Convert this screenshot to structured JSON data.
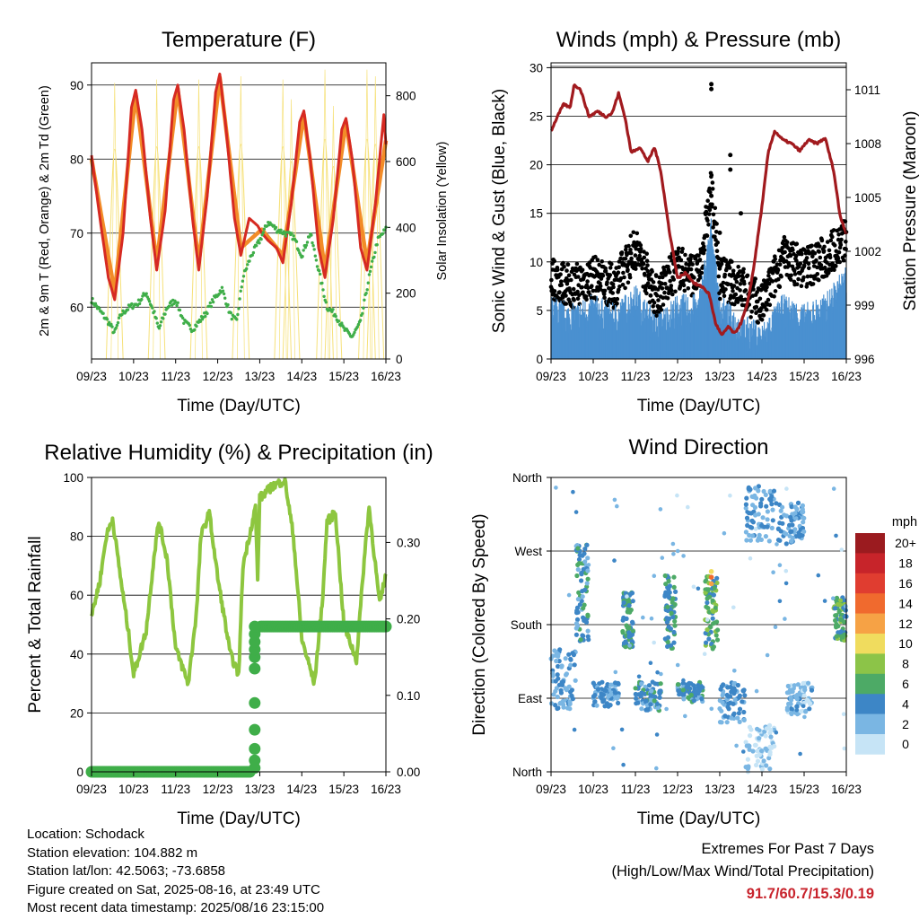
{
  "chart_data": [
    {
      "type": "line",
      "title": "Temperature (F)",
      "xlabel": "Time (Day/UTC)",
      "ylabel": "2m & 9m T (Red, Orange) & 2m Td (Green)",
      "y2label": "Solar Insolation (Yellow)",
      "x_ticks": [
        "09/23",
        "10/23",
        "11/23",
        "12/23",
        "13/23",
        "14/23",
        "15/23",
        "16/23"
      ],
      "ylim": [
        53,
        93
      ],
      "y_ticks": [
        60,
        70,
        80,
        90
      ],
      "y2lim": [
        0,
        900
      ],
      "y2_ticks": [
        0,
        200,
        400,
        600,
        800
      ],
      "series": [
        {
          "name": "2m T",
          "color": "#d62a22",
          "x": [
            0,
            0.2,
            0.4,
            0.55,
            0.75,
            0.95,
            1.05,
            1.2,
            1.4,
            1.55,
            1.75,
            1.95,
            2.05,
            2.2,
            2.4,
            2.55,
            2.75,
            2.95,
            3.05,
            3.2,
            3.4,
            3.55,
            3.75,
            3.95,
            4.05,
            4.2,
            4.4,
            4.55,
            4.75,
            4.95,
            5.05,
            5.2,
            5.4,
            5.55,
            5.75,
            5.95,
            6.05,
            6.2,
            6.4,
            6.55,
            6.75,
            6.95,
            7.0
          ],
          "y": [
            80.5,
            72,
            64,
            61,
            70,
            87,
            89.3,
            84,
            72,
            65,
            73,
            88,
            90,
            84,
            72,
            65,
            75,
            89,
            91.5,
            84,
            72,
            67,
            72,
            71,
            70,
            69,
            68,
            66,
            74,
            85,
            86.5,
            80,
            68,
            64,
            72,
            84,
            85.5,
            80,
            68,
            65,
            74,
            86,
            82
          ]
        },
        {
          "name": "9m T",
          "color": "#f28c28",
          "x": [
            0,
            0.55,
            1.05,
            1.55,
            2.05,
            2.55,
            3.05,
            3.55,
            4.05,
            4.55,
            5.05,
            5.55,
            6.05,
            6.55,
            7.0
          ],
          "y": [
            80,
            62,
            88.8,
            66,
            89.5,
            66,
            91,
            68,
            70.5,
            67,
            86,
            65,
            85,
            66,
            82.5
          ]
        },
        {
          "name": "2m Td",
          "color": "#3fae49",
          "x": [
            0,
            0.2,
            0.4,
            0.55,
            0.7,
            0.9,
            1.1,
            1.3,
            1.5,
            1.6,
            1.8,
            2.0,
            2.2,
            2.4,
            2.55,
            2.7,
            2.9,
            3.1,
            3.3,
            3.45,
            3.6,
            3.8,
            4.0,
            4.2,
            4.4,
            4.6,
            4.8,
            5.0,
            5.2,
            5.4,
            5.6,
            5.8,
            6.0,
            6.2,
            6.4,
            6.6,
            6.8,
            7.0
          ],
          "y": [
            61,
            59.5,
            58,
            56.5,
            59,
            60,
            60.5,
            62,
            59,
            57,
            60,
            61,
            58,
            57,
            58,
            59,
            61,
            62.5,
            59,
            58,
            64,
            67,
            69,
            71.5,
            70.5,
            70,
            69.5,
            67,
            70,
            65,
            60,
            59,
            57,
            56,
            58,
            64,
            69,
            70.5
          ]
        },
        {
          "name": "Solar Insolation",
          "axis": "y2",
          "color": "#f6e17a",
          "peaks_x": [
            0.55,
            1.55,
            2.55,
            3.55,
            4.55,
            4.75,
            5.55,
            5.75,
            6.55,
            6.75
          ],
          "peaks_y": [
            850,
            860,
            860,
            870,
            860,
            800,
            890,
            780,
            890,
            870
          ]
        }
      ]
    },
    {
      "type": "line",
      "title": "Winds (mph) & Pressure (mb)",
      "xlabel": "Time (Day/UTC)",
      "ylabel": "Sonic Wind & Gust (Blue, Black)",
      "y2label": "Station Pressure (Maroon)",
      "x_ticks": [
        "09/23",
        "10/23",
        "11/23",
        "12/23",
        "13/23",
        "14/23",
        "15/23",
        "16/23"
      ],
      "ylim": [
        0,
        30.5
      ],
      "y_ticks": [
        0,
        5,
        10,
        15,
        20,
        25,
        30
      ],
      "y2lim": [
        996,
        1012.5
      ],
      "y2_ticks": [
        996,
        999,
        1002,
        1005,
        1008,
        1011
      ],
      "series": [
        {
          "name": "Pressure",
          "axis": "y2",
          "color": "#a11a1e",
          "x": [
            0,
            0.15,
            0.3,
            0.45,
            0.55,
            0.7,
            0.9,
            1.1,
            1.3,
            1.45,
            1.6,
            1.75,
            1.9,
            2.1,
            2.3,
            2.45,
            2.6,
            2.8,
            3.0,
            3.2,
            3.4,
            3.6,
            3.75,
            3.9,
            4.05,
            4.2,
            4.35,
            4.5,
            4.65,
            4.8,
            5.0,
            5.15,
            5.3,
            5.5,
            5.7,
            5.9,
            6.1,
            6.3,
            6.5,
            6.7,
            6.85,
            7.0
          ],
          "y": [
            1008.7,
            1009.5,
            1010.2,
            1010,
            1011.3,
            1011,
            1009.5,
            1009.8,
            1009.5,
            1009.7,
            1010.8,
            1009.5,
            1007.5,
            1007.8,
            1007,
            1007.8,
            1006.5,
            1003.2,
            1000.5,
            1000.8,
            1000.2,
            1000,
            999.6,
            998,
            997.3,
            997.8,
            997.4,
            998,
            999,
            1001,
            1004.5,
            1007.5,
            1008.7,
            1008.2,
            1008,
            1007.6,
            1008.2,
            1008,
            1008.3,
            1006.5,
            1004,
            1003
          ]
        },
        {
          "name": "Wind",
          "color": "#4a90d0",
          "x": [
            0,
            0.5,
            1,
            1.5,
            2,
            2.5,
            3,
            3.5,
            3.8,
            4,
            4.5,
            5,
            5.5,
            6,
            6.5,
            7
          ],
          "y": [
            5,
            4,
            5,
            4,
            6,
            3,
            5,
            5,
            13,
            5,
            3,
            2,
            5,
            4,
            5,
            8
          ]
        },
        {
          "name": "Gust",
          "color": "#000000",
          "x": [
            0,
            0.5,
            1,
            1.5,
            2,
            2.5,
            3,
            3.5,
            3.8,
            4,
            4.5,
            5,
            5.5,
            6,
            6.5,
            7
          ],
          "y": [
            8,
            7,
            8,
            7,
            11,
            6,
            9,
            8,
            17,
            8,
            7,
            5,
            10,
            9,
            10,
            12
          ]
        }
      ]
    },
    {
      "type": "line",
      "title": "Relative Humidity (%) & Precipitation (in)",
      "xlabel": "Time (Day/UTC)",
      "ylabel": "Percent & Total Rainfall",
      "x_ticks": [
        "09/23",
        "10/23",
        "11/23",
        "12/23",
        "13/23",
        "14/23",
        "15/23",
        "16/23"
      ],
      "ylim": [
        0,
        100
      ],
      "y_ticks": [
        0,
        20,
        40,
        60,
        80,
        100
      ],
      "y2lim": [
        0,
        0.385
      ],
      "y2_ticks": [
        "0.00",
        "0.10",
        "0.20",
        "0.30"
      ],
      "series": [
        {
          "name": "Relative Humidity",
          "color": "#8dc63f",
          "x": [
            0,
            0.2,
            0.35,
            0.5,
            0.7,
            0.9,
            1.0,
            1.3,
            1.5,
            1.6,
            1.8,
            2.0,
            2.3,
            2.5,
            2.6,
            2.8,
            3.0,
            3.3,
            3.5,
            3.6,
            3.9,
            3.95,
            4.0,
            4.3,
            4.6,
            4.8,
            5.0,
            5.3,
            5.5,
            5.6,
            5.8,
            6.0,
            6.3,
            6.5,
            6.6,
            6.85,
            7.0
          ],
          "y": [
            53,
            65,
            80,
            86,
            65,
            45,
            33,
            48,
            75,
            85,
            72,
            42,
            30,
            55,
            80,
            88,
            66,
            40,
            33,
            70,
            90,
            65,
            93,
            97,
            99,
            80,
            45,
            30,
            60,
            85,
            88,
            50,
            38,
            75,
            90,
            57,
            67
          ]
        },
        {
          "name": "Precipitation",
          "axis": "y2",
          "color": "#3fae49",
          "x": [
            0,
            3.8,
            3.82,
            3.84,
            3.86,
            3.88,
            3.9,
            3.92,
            3.95,
            4.0,
            7.0
          ],
          "y": [
            0,
            0,
            0.01,
            0.03,
            0.06,
            0.12,
            0.15,
            0.16,
            0.18,
            0.19,
            0.19
          ]
        }
      ]
    },
    {
      "type": "scatter",
      "title": "Wind Direction",
      "xlabel": "Time (Day/UTC)",
      "ylabel": "Direction (Colored By Speed)",
      "x_ticks": [
        "09/23",
        "10/23",
        "11/23",
        "12/23",
        "13/23",
        "14/23",
        "15/23",
        "16/23"
      ],
      "y_ticks": [
        "North",
        "East",
        "South",
        "West",
        "North"
      ],
      "ylim": [
        0,
        360
      ],
      "legend_title": "mph",
      "legend_labels": [
        "20+",
        "18",
        "16",
        "14",
        "12",
        "10",
        "8",
        "6",
        "4",
        "2",
        "0"
      ],
      "legend_colors": [
        "#9b1b1f",
        "#c7242a",
        "#e03d30",
        "#f06a2e",
        "#f6a245",
        "#f0dc5e",
        "#8cc448",
        "#4daa66",
        "#3d86c6",
        "#7ab6e3",
        "#c6e4f6"
      ],
      "clusters": [
        {
          "x0": 0.0,
          "x1": 0.6,
          "y0": 75,
          "y1": 150,
          "speed": 3
        },
        {
          "x0": 0.6,
          "x1": 0.9,
          "y0": 160,
          "y1": 280,
          "speed": 4
        },
        {
          "x0": 1.0,
          "x1": 1.6,
          "y0": 80,
          "y1": 110,
          "speed": 3
        },
        {
          "x0": 1.7,
          "x1": 1.95,
          "y0": 150,
          "y1": 220,
          "speed": 5
        },
        {
          "x0": 2.0,
          "x1": 2.6,
          "y0": 75,
          "y1": 110,
          "speed": 4
        },
        {
          "x0": 2.7,
          "x1": 2.95,
          "y0": 150,
          "y1": 240,
          "speed": 5
        },
        {
          "x0": 3.0,
          "x1": 3.6,
          "y0": 85,
          "y1": 110,
          "speed": 4
        },
        {
          "x0": 3.65,
          "x1": 3.95,
          "y0": 150,
          "y1": 240,
          "speed": 6
        },
        {
          "x0": 4.0,
          "x1": 4.6,
          "y0": 60,
          "y1": 110,
          "speed": 3
        },
        {
          "x0": 4.6,
          "x1": 5.3,
          "y0": 0,
          "y1": 60,
          "speed": 1
        },
        {
          "x0": 4.6,
          "x1": 5.3,
          "y0": 280,
          "y1": 350,
          "speed": 3
        },
        {
          "x0": 5.3,
          "x1": 6.0,
          "y0": 275,
          "y1": 330,
          "speed": 3
        },
        {
          "x0": 5.6,
          "x1": 6.2,
          "y0": 70,
          "y1": 110,
          "speed": 2
        },
        {
          "x0": 6.7,
          "x1": 7.0,
          "y0": 160,
          "y1": 215,
          "speed": 6
        }
      ]
    }
  ],
  "info": {
    "location": "Location: Schodack",
    "elevation": "Station elevation: 104.882 m",
    "latlon": "Station lat/lon: 42.5063; -73.6858",
    "created": "Figure created on Sat, 2025-08-16, at 23:49 UTC",
    "recent": "Most recent data timestamp: 2025/08/16 23:15:00"
  },
  "extremes": {
    "title": "Extremes For Past 7 Days",
    "subtitle": "(High/Low/Max Wind/Total Precipitation)",
    "values": "91.7/60.7/15.3/0.19"
  }
}
